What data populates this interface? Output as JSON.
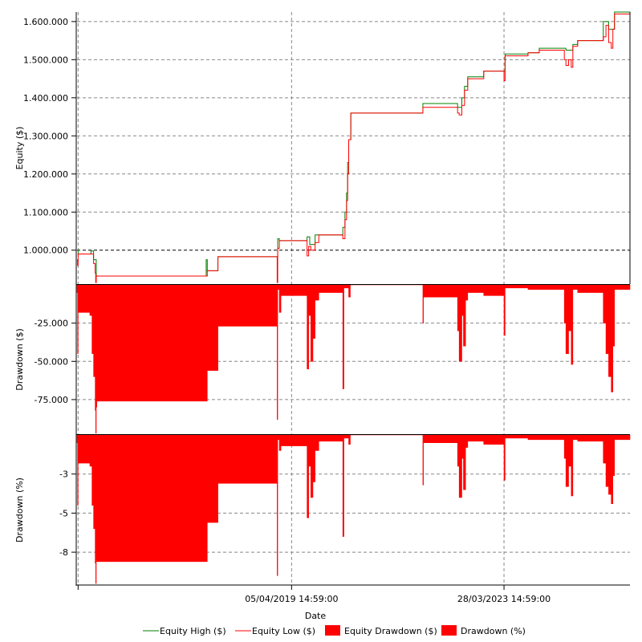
{
  "chart_data": {
    "type": "line",
    "xlabel": "Date",
    "x_unit": "decimal year",
    "xlim": [
      2015.24,
      2025.6
    ],
    "x_ticks": [
      {
        "x": 2015.26,
        "label": ""
      },
      {
        "x": 2019.26,
        "label": "05/04/2019 14:59:00"
      },
      {
        "x": 2023.24,
        "label": "28/03/2023 14:59:00"
      }
    ],
    "legend_position": "bottom",
    "legend": [
      {
        "name": "Equity High ($)",
        "color": "#008000",
        "kind": "line"
      },
      {
        "name": "Equity Low ($)",
        "color": "#ff0000",
        "kind": "line"
      },
      {
        "name": "Equity Drawdown ($)",
        "color": "#ff0000",
        "kind": "area"
      },
      {
        "name": "Drawdown (%)",
        "color": "#ff0000",
        "kind": "area"
      }
    ],
    "panels": [
      {
        "ylabel": "Equity ($)",
        "ylim": [
          911000,
          1625000
        ],
        "grid": true,
        "y_ticks": [
          {
            "v": 1000000,
            "label": "1.000.000"
          },
          {
            "v": 1100000,
            "label": "1.100.000"
          },
          {
            "v": 1200000,
            "label": "1.200.000"
          },
          {
            "v": 1300000,
            "label": "1.300.000"
          },
          {
            "v": 1400000,
            "label": "1.400.000"
          },
          {
            "v": 1500000,
            "label": "1.500.000"
          },
          {
            "v": 1600000,
            "label": "1.600.000"
          }
        ],
        "unit_scale": 1000,
        "equity_high": [
          [
            2015.24,
            1000
          ],
          [
            2015.26,
            990
          ],
          [
            2015.5,
            998
          ],
          [
            2015.55,
            975
          ],
          [
            2015.6,
            932
          ],
          [
            2017.66,
            975
          ],
          [
            2017.68,
            946
          ],
          [
            2017.88,
            983
          ],
          [
            2019,
            1030
          ],
          [
            2019.03,
            1025
          ],
          [
            2019.55,
            1035
          ],
          [
            2019.6,
            1015
          ],
          [
            2019.7,
            1040
          ],
          [
            2020.22,
            1060
          ],
          [
            2020.26,
            1100
          ],
          [
            2020.29,
            1150
          ],
          [
            2020.31,
            1230
          ],
          [
            2020.33,
            1290
          ],
          [
            2020.37,
            1360
          ],
          [
            2021.72,
            1385
          ],
          [
            2022.37,
            1375
          ],
          [
            2022.45,
            1400
          ],
          [
            2022.5,
            1430
          ],
          [
            2022.56,
            1455
          ],
          [
            2022.86,
            1470
          ],
          [
            2023.26,
            1515
          ],
          [
            2023.69,
            1518
          ],
          [
            2023.9,
            1530
          ],
          [
            2024.4,
            1525
          ],
          [
            2024.53,
            1540
          ],
          [
            2024.62,
            1550
          ],
          [
            2025.1,
            1600
          ],
          [
            2025.2,
            1580
          ],
          [
            2025.31,
            1625
          ],
          [
            2025.6,
            1615
          ]
        ],
        "equity_low": [
          [
            2015.24,
            975
          ],
          [
            2015.25,
            960
          ],
          [
            2015.26,
            990
          ],
          [
            2015.55,
            965
          ],
          [
            2015.58,
            940
          ],
          [
            2015.59,
            915
          ],
          [
            2015.6,
            932
          ],
          [
            2017.68,
            946
          ],
          [
            2017.88,
            983
          ],
          [
            2018.99,
            915
          ],
          [
            2019,
            1005
          ],
          [
            2019.03,
            1025
          ],
          [
            2019.55,
            985
          ],
          [
            2019.58,
            1010
          ],
          [
            2019.62,
            1000
          ],
          [
            2019.7,
            1020
          ],
          [
            2019.77,
            1040
          ],
          [
            2020.22,
            1030
          ],
          [
            2020.26,
            1080
          ],
          [
            2020.29,
            1130
          ],
          [
            2020.31,
            1200
          ],
          [
            2020.33,
            1290
          ],
          [
            2020.37,
            1360
          ],
          [
            2021.72,
            1375
          ],
          [
            2022.37,
            1360
          ],
          [
            2022.4,
            1355
          ],
          [
            2022.45,
            1380
          ],
          [
            2022.5,
            1420
          ],
          [
            2022.56,
            1450
          ],
          [
            2022.86,
            1470
          ],
          [
            2023.24,
            1445
          ],
          [
            2023.26,
            1510
          ],
          [
            2023.69,
            1518
          ],
          [
            2023.9,
            1525
          ],
          [
            2024.37,
            1500
          ],
          [
            2024.4,
            1485
          ],
          [
            2024.45,
            1500
          ],
          [
            2024.5,
            1480
          ],
          [
            2024.53,
            1535
          ],
          [
            2024.62,
            1550
          ],
          [
            2025.1,
            1560
          ],
          [
            2025.15,
            1590
          ],
          [
            2025.2,
            1545
          ],
          [
            2025.25,
            1530
          ],
          [
            2025.28,
            1580
          ],
          [
            2025.31,
            1620
          ],
          [
            2025.6,
            1615
          ]
        ]
      },
      {
        "ylabel": "Drawdown ($)",
        "ylim": [
          -97600,
          0
        ],
        "grid": true,
        "y_ticks": [
          {
            "v": -25000,
            "label": "-25.000"
          },
          {
            "v": -50000,
            "label": "-50.000"
          },
          {
            "v": -75000,
            "label": "-75.000"
          }
        ]
      },
      {
        "ylabel": "Drawdown (%)",
        "ylim": [
          -9.6,
          0
        ],
        "grid": true,
        "y_ticks": [
          {
            "v": -2.5,
            "label": "-3"
          },
          {
            "v": -5,
            "label": "-5"
          },
          {
            "v": -7.5,
            "label": "-8"
          }
        ]
      }
    ],
    "drawdown_columns": [
      "x",
      "drawdown_k$",
      "drawdown_pct"
    ],
    "drawdown": [
      [
        2015.24,
        -5,
        -0.5
      ],
      [
        2015.25,
        -45,
        -4.5
      ],
      [
        2015.26,
        -18,
        -1.8
      ],
      [
        2015.48,
        -20,
        -2
      ],
      [
        2015.52,
        -45,
        -4.5
      ],
      [
        2015.55,
        -60,
        -6
      ],
      [
        2015.58,
        -82,
        -8.2
      ],
      [
        2015.59,
        -97,
        -9.5
      ],
      [
        2015.6,
        -80,
        -8
      ],
      [
        2015.61,
        -76,
        -8.1
      ],
      [
        2017.68,
        -56,
        -5.6
      ],
      [
        2017.88,
        -27,
        -3.1
      ],
      [
        2018.99,
        -88,
        -9
      ],
      [
        2019,
        -3,
        -0.3
      ],
      [
        2019.03,
        -18,
        -1
      ],
      [
        2019.06,
        -7,
        -0.7
      ],
      [
        2019.55,
        -55,
        -5.3
      ],
      [
        2019.58,
        -20,
        -2
      ],
      [
        2019.62,
        -50,
        -4
      ],
      [
        2019.66,
        -35,
        -3
      ],
      [
        2019.7,
        -10,
        -1
      ],
      [
        2019.77,
        -5,
        -0.4
      ],
      [
        2020.22,
        -68,
        -6.5
      ],
      [
        2020.24,
        -2,
        -0.2
      ],
      [
        2020.33,
        -8,
        -0.6
      ],
      [
        2020.36,
        0,
        0
      ],
      [
        2021.72,
        -25,
        -3.2
      ],
      [
        2021.73,
        -8,
        -0.5
      ],
      [
        2022.37,
        -30,
        -2
      ],
      [
        2022.4,
        -50,
        -4
      ],
      [
        2022.45,
        -20,
        -1.5
      ],
      [
        2022.48,
        -40,
        -3.5
      ],
      [
        2022.52,
        -10,
        -0.8
      ],
      [
        2022.56,
        -5,
        -0.4
      ],
      [
        2022.86,
        -7,
        -0.6
      ],
      [
        2023.24,
        -33,
        -2.9
      ],
      [
        2023.26,
        -2,
        -0.2
      ],
      [
        2023.69,
        -3,
        -0.3
      ],
      [
        2024.37,
        -25,
        -1.5
      ],
      [
        2024.4,
        -45,
        -3.3
      ],
      [
        2024.45,
        -30,
        -2
      ],
      [
        2024.5,
        -52,
        -3.9
      ],
      [
        2024.53,
        -3,
        -0.3
      ],
      [
        2024.62,
        -5,
        -0.4
      ],
      [
        2025.1,
        -25,
        -1.8
      ],
      [
        2025.15,
        -45,
        -3.3
      ],
      [
        2025.2,
        -60,
        -3.8
      ],
      [
        2025.25,
        -70,
        -4.4
      ],
      [
        2025.28,
        -40,
        -2.6
      ],
      [
        2025.31,
        -3,
        -0.3
      ],
      [
        2025.6,
        -3,
        -0.3
      ]
    ]
  }
}
